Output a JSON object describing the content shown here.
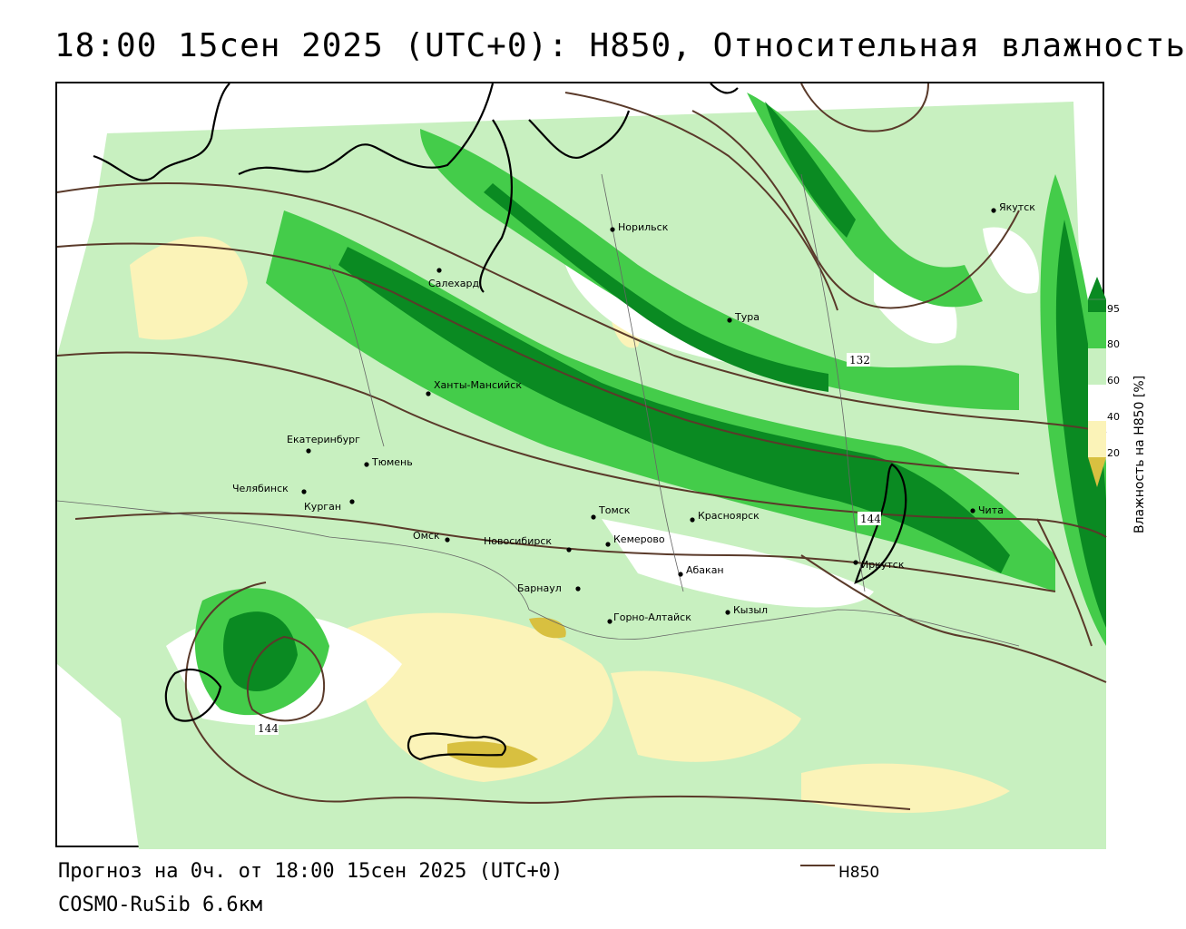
{
  "title": "18:00 15сен 2025 (UTC+0): H850, Относительная влажность",
  "footer": {
    "forecast": "Прогноз на 0ч. от 18:00 15сен 2025 (UTC+0)",
    "model": "COSMO-RuSib 6.6км"
  },
  "legend": {
    "contour_label": "H850",
    "contour_color": "#5a3a2a"
  },
  "colorbar": {
    "title": "Влажность на H850 [%]",
    "ticks": [
      "95",
      "80",
      "60",
      "40",
      "20"
    ],
    "colors": {
      "very_dry": "#d8c040",
      "dry": "#fbf3b8",
      "mid": "#ffffff",
      "moist": "#c8f0c0",
      "wet": "#44cc4a",
      "very_wet": "#0a8a22"
    }
  },
  "contour_labels": [
    "132",
    "144",
    "144"
  ],
  "cities": [
    {
      "name": "Якутск"
    },
    {
      "name": "Норильск"
    },
    {
      "name": "Салехард"
    },
    {
      "name": "Тура"
    },
    {
      "name": "Ханты-Мансийск"
    },
    {
      "name": "Екатеринбург"
    },
    {
      "name": "Тюмень"
    },
    {
      "name": "Челябинск"
    },
    {
      "name": "Курган"
    },
    {
      "name": "Омск"
    },
    {
      "name": "Новосибирск"
    },
    {
      "name": "Томск"
    },
    {
      "name": "Кемерово"
    },
    {
      "name": "Красноярск"
    },
    {
      "name": "Абакан"
    },
    {
      "name": "Барнаул"
    },
    {
      "name": "Горно-Алтайск"
    },
    {
      "name": "Кызыл"
    },
    {
      "name": "Иркутск"
    },
    {
      "name": "Чита"
    }
  ]
}
